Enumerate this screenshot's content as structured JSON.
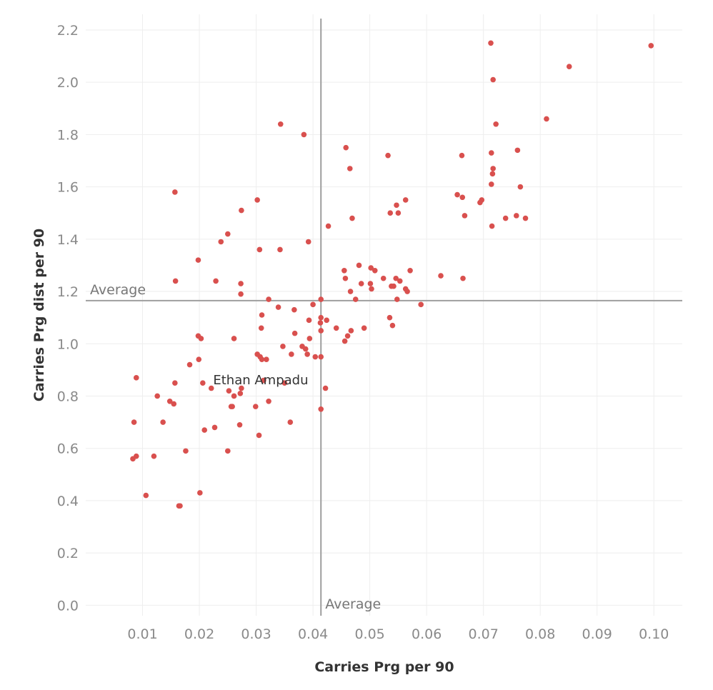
{
  "chart_data": {
    "type": "scatter",
    "xlabel": "Carries Prg per 90",
    "ylabel": "Carries Prg dist per 90",
    "xlim": [
      0.0,
      0.105
    ],
    "ylim": [
      -0.04,
      2.26
    ],
    "x_ticks": [
      "0.01",
      "0.02",
      "0.03",
      "0.04",
      "0.05",
      "0.06",
      "0.07",
      "0.08",
      "0.09",
      "0.10"
    ],
    "y_ticks": [
      "0.0",
      "0.2",
      "0.4",
      "0.6",
      "0.8",
      "1.0",
      "1.2",
      "1.4",
      "1.6",
      "1.8",
      "2.0",
      "2.2"
    ],
    "grid": true,
    "point_color": "#d9504e",
    "reference_lines": {
      "x_average": {
        "value": 0.0414,
        "label": "Average"
      },
      "y_average": {
        "value": 1.165,
        "label": "Average"
      }
    },
    "annotations": [
      {
        "text": "Ethan Ampadu",
        "x": 0.0308,
        "y": 0.84
      }
    ],
    "points": [
      [
        0.0713,
        2.15
      ],
      [
        0.0995,
        2.14
      ],
      [
        0.0851,
        2.06
      ],
      [
        0.0717,
        2.01
      ],
      [
        0.0811,
        1.86
      ],
      [
        0.0722,
        1.84
      ],
      [
        0.0343,
        1.84
      ],
      [
        0.0384,
        1.8
      ],
      [
        0.0458,
        1.75
      ],
      [
        0.076,
        1.74
      ],
      [
        0.0714,
        1.73
      ],
      [
        0.0662,
        1.72
      ],
      [
        0.0532,
        1.72
      ],
      [
        0.0717,
        1.67
      ],
      [
        0.0465,
        1.67
      ],
      [
        0.0716,
        1.65
      ],
      [
        0.0765,
        1.6
      ],
      [
        0.0714,
        1.61
      ],
      [
        0.0157,
        1.58
      ],
      [
        0.0654,
        1.57
      ],
      [
        0.0663,
        1.56
      ],
      [
        0.0697,
        1.55
      ],
      [
        0.0694,
        1.54
      ],
      [
        0.0563,
        1.55
      ],
      [
        0.0302,
        1.55
      ],
      [
        0.0547,
        1.53
      ],
      [
        0.0274,
        1.51
      ],
      [
        0.0536,
        1.5
      ],
      [
        0.055,
        1.5
      ],
      [
        0.0667,
        1.49
      ],
      [
        0.0758,
        1.49
      ],
      [
        0.0774,
        1.48
      ],
      [
        0.0739,
        1.48
      ],
      [
        0.0469,
        1.48
      ],
      [
        0.0715,
        1.45
      ],
      [
        0.0427,
        1.45
      ],
      [
        0.025,
        1.42
      ],
      [
        0.0238,
        1.39
      ],
      [
        0.0392,
        1.39
      ],
      [
        0.0306,
        1.36
      ],
      [
        0.0342,
        1.36
      ],
      [
        0.0198,
        1.32
      ],
      [
        0.0502,
        1.29
      ],
      [
        0.0481,
        1.3
      ],
      [
        0.0509,
        1.28
      ],
      [
        0.0455,
        1.28
      ],
      [
        0.0571,
        1.28
      ],
      [
        0.0625,
        1.26
      ],
      [
        0.0457,
        1.25
      ],
      [
        0.0664,
        1.25
      ],
      [
        0.0524,
        1.25
      ],
      [
        0.0546,
        1.25
      ],
      [
        0.0553,
        1.24
      ],
      [
        0.0158,
        1.24
      ],
      [
        0.0229,
        1.24
      ],
      [
        0.0485,
        1.23
      ],
      [
        0.0501,
        1.23
      ],
      [
        0.0273,
        1.23
      ],
      [
        0.0538,
        1.22
      ],
      [
        0.0542,
        1.22
      ],
      [
        0.0503,
        1.21
      ],
      [
        0.0563,
        1.21
      ],
      [
        0.0466,
        1.2
      ],
      [
        0.0566,
        1.2
      ],
      [
        0.0273,
        1.19
      ],
      [
        0.0548,
        1.17
      ],
      [
        0.0475,
        1.17
      ],
      [
        0.0322,
        1.17
      ],
      [
        0.0414,
        1.17
      ],
      [
        0.059,
        1.15
      ],
      [
        0.04,
        1.15
      ],
      [
        0.0339,
        1.14
      ],
      [
        0.0367,
        1.13
      ],
      [
        0.031,
        1.11
      ],
      [
        0.0535,
        1.1
      ],
      [
        0.0414,
        1.1
      ],
      [
        0.0424,
        1.09
      ],
      [
        0.0393,
        1.09
      ],
      [
        0.0413,
        1.08
      ],
      [
        0.054,
        1.07
      ],
      [
        0.0441,
        1.06
      ],
      [
        0.049,
        1.06
      ],
      [
        0.0309,
        1.06
      ],
      [
        0.0414,
        1.05
      ],
      [
        0.0467,
        1.05
      ],
      [
        0.0368,
        1.04
      ],
      [
        0.0461,
        1.03
      ],
      [
        0.0198,
        1.03
      ],
      [
        0.0203,
        1.02
      ],
      [
        0.0394,
        1.02
      ],
      [
        0.0261,
        1.02
      ],
      [
        0.0456,
        1.01
      ],
      [
        0.0381,
        0.99
      ],
      [
        0.0347,
        0.99
      ],
      [
        0.0387,
        0.98
      ],
      [
        0.0302,
        0.96
      ],
      [
        0.0362,
        0.96
      ],
      [
        0.039,
        0.96
      ],
      [
        0.0404,
        0.95
      ],
      [
        0.0414,
        0.95
      ],
      [
        0.0307,
        0.95
      ],
      [
        0.031,
        0.94
      ],
      [
        0.0318,
        0.94
      ],
      [
        0.0199,
        0.94
      ],
      [
        0.0183,
        0.92
      ],
      [
        0.0089,
        0.87
      ],
      [
        0.0313,
        0.86
      ],
      [
        0.0157,
        0.85
      ],
      [
        0.0206,
        0.85
      ],
      [
        0.035,
        0.85
      ],
      [
        0.0422,
        0.83
      ],
      [
        0.0221,
        0.83
      ],
      [
        0.0274,
        0.83
      ],
      [
        0.0252,
        0.82
      ],
      [
        0.0272,
        0.81
      ],
      [
        0.0126,
        0.8
      ],
      [
        0.0261,
        0.8
      ],
      [
        0.0322,
        0.78
      ],
      [
        0.0148,
        0.78
      ],
      [
        0.0155,
        0.77
      ],
      [
        0.0258,
        0.76
      ],
      [
        0.0256,
        0.76
      ],
      [
        0.0299,
        0.76
      ],
      [
        0.0414,
        0.75
      ],
      [
        0.0085,
        0.7
      ],
      [
        0.0136,
        0.7
      ],
      [
        0.036,
        0.7
      ],
      [
        0.0271,
        0.69
      ],
      [
        0.0227,
        0.68
      ],
      [
        0.0209,
        0.67
      ],
      [
        0.0305,
        0.65
      ],
      [
        0.0176,
        0.59
      ],
      [
        0.025,
        0.59
      ],
      [
        0.012,
        0.57
      ],
      [
        0.0089,
        0.57
      ],
      [
        0.0083,
        0.56
      ],
      [
        0.0106,
        0.42
      ],
      [
        0.0201,
        0.43
      ],
      [
        0.0166,
        0.38
      ],
      [
        0.0164,
        0.38
      ]
    ]
  }
}
